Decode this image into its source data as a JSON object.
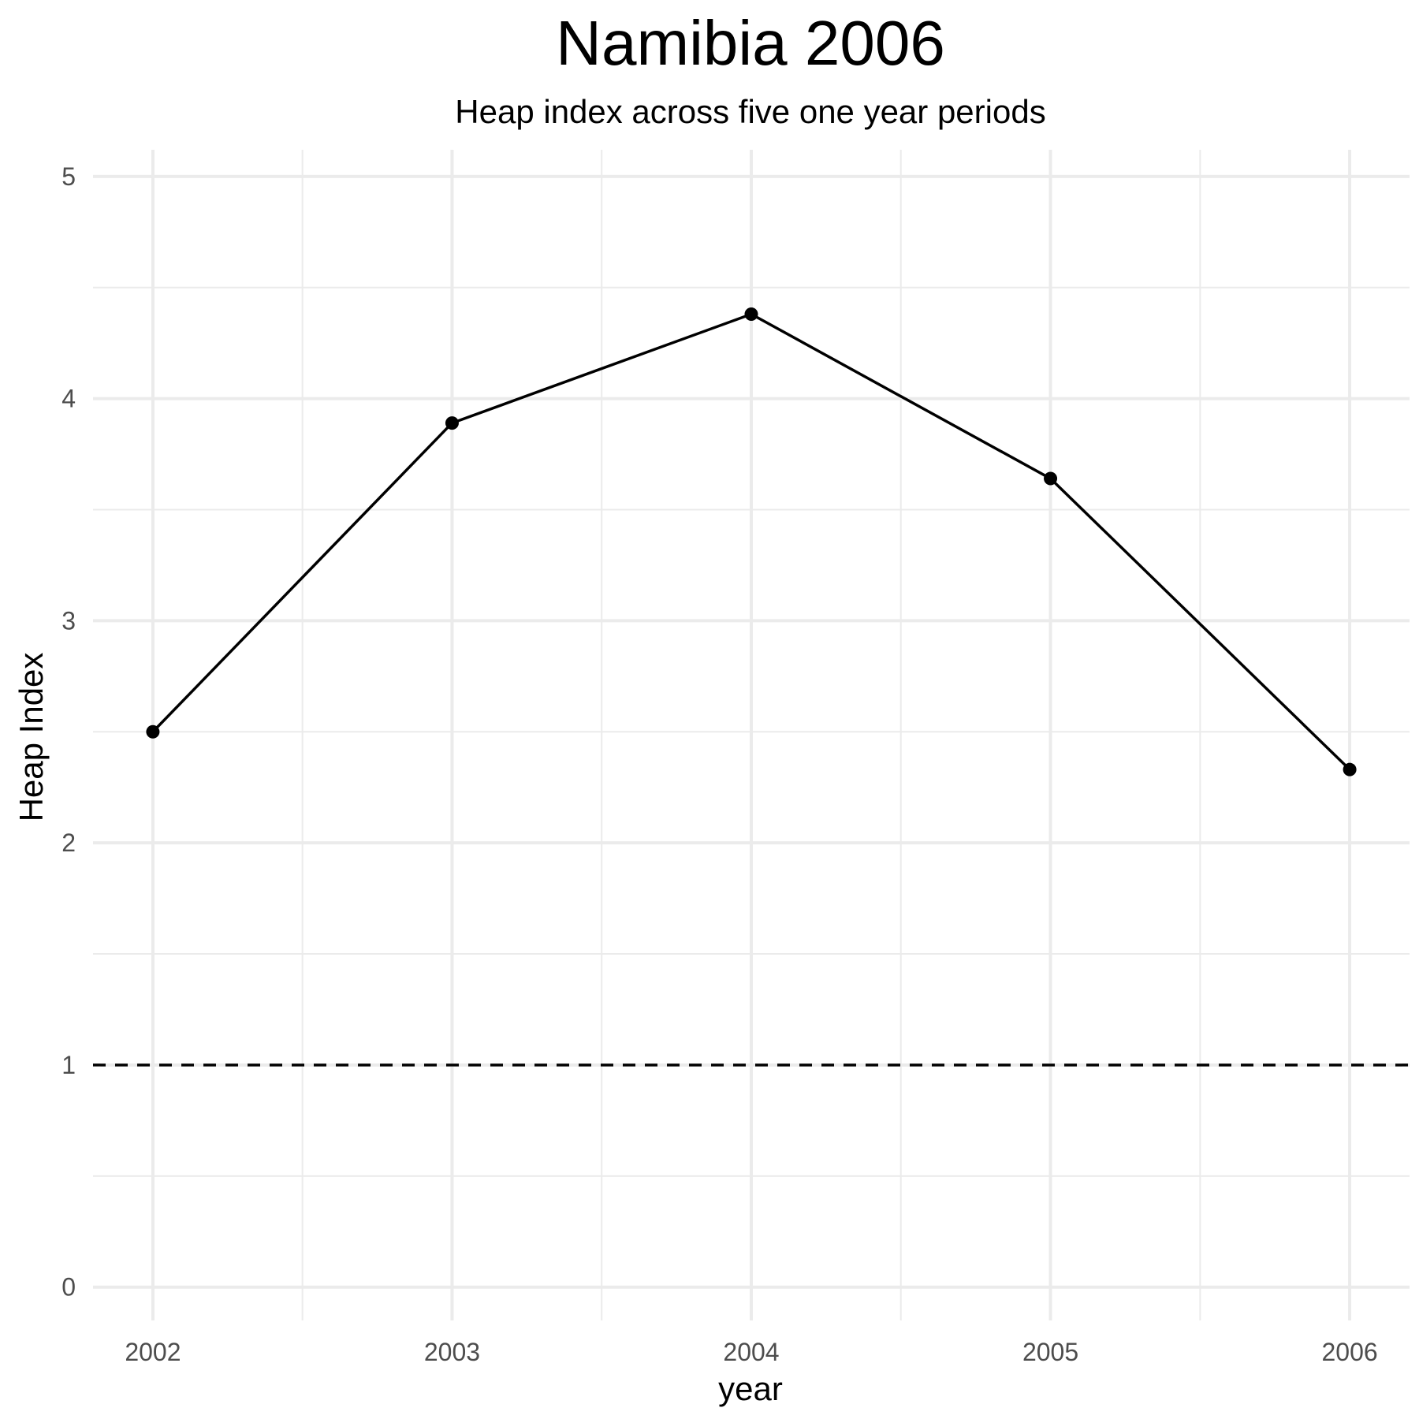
{
  "chart_data": {
    "type": "line",
    "title": "Namibia 2006",
    "subtitle": "Heap index across five one year periods",
    "xlabel": "year",
    "ylabel": "Heap Index",
    "x": [
      2002,
      2003,
      2004,
      2005,
      2006
    ],
    "series": [
      {
        "values": [
          2.5,
          3.89,
          4.38,
          3.64,
          2.33
        ]
      }
    ],
    "xlim": [
      2001.8,
      2006.2
    ],
    "ylim": [
      -0.15,
      5.12
    ],
    "x_ticks": [
      2002,
      2003,
      2004,
      2005,
      2006
    ],
    "y_ticks": [
      0,
      1,
      2,
      3,
      4,
      5
    ],
    "reference_line": {
      "y": 1,
      "style": "dashed"
    },
    "grid": true,
    "colors": {
      "line": "#000000",
      "grid": "#ebebeb",
      "tick_text": "#4d4d4d"
    }
  }
}
